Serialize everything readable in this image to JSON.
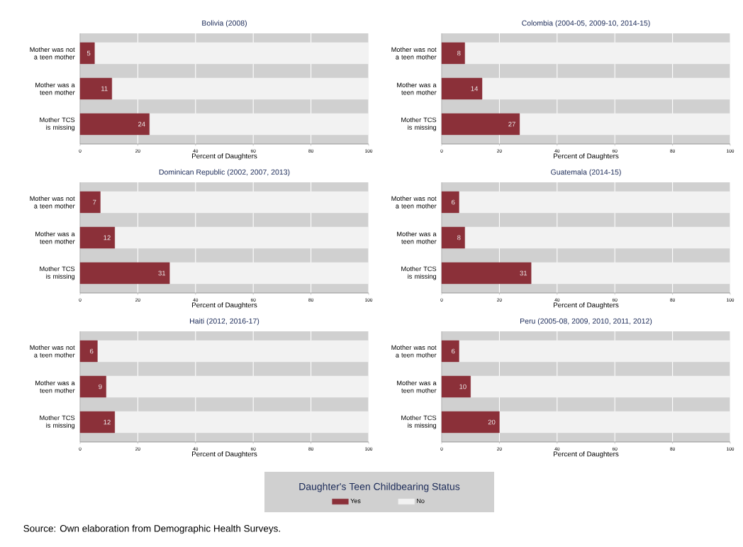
{
  "chart_data": [
    {
      "type": "bar",
      "orientation": "horizontal",
      "stacked": true,
      "title": "Bolivia (2008)",
      "xlabel": "Percent of Daughters",
      "categories": [
        "Mother was not a teen mother",
        "Mother was a teen mother",
        "Mother TCS is missing"
      ],
      "series": [
        {
          "color": "#8b3039",
          "values": [
            5,
            11,
            24
          ],
          "value_labels": [
            "5",
            "11",
            "24"
          ]
        },
        {
          "color": "#f2f2f2",
          "values": [
            95,
            89,
            76
          ]
        }
      ],
      "xlim": [
        0,
        100
      ],
      "xticks": [
        0,
        20,
        40,
        60,
        80,
        100
      ],
      "grid": "x"
    },
    {
      "type": "bar",
      "orientation": "horizontal",
      "stacked": true,
      "title": "Colombia (2004-05, 2009-10, 2014-15)",
      "xlabel": "Percent of Daughters",
      "categories": [
        "Mother was not a teen mother",
        "Mother was a teen mother",
        "Mother TCS is missing"
      ],
      "series": [
        {
          "color": "#8b3039",
          "values": [
            8,
            14,
            27
          ],
          "value_labels": [
            "8",
            "14",
            "27"
          ]
        },
        {
          "color": "#f2f2f2",
          "values": [
            92,
            86,
            73
          ]
        }
      ],
      "xlim": [
        0,
        100
      ],
      "xticks": [
        0,
        20,
        40,
        60,
        80,
        100
      ],
      "grid": "x"
    },
    {
      "type": "bar",
      "orientation": "horizontal",
      "stacked": true,
      "title": "Dominican Republic (2002, 2007, 2013)",
      "xlabel": "Percent of Daughters",
      "categories": [
        "Mother was not a teen mother",
        "Mother was a teen mother",
        "Mother TCS is missing"
      ],
      "series": [
        {
          "color": "#8b3039",
          "values": [
            7,
            12,
            31
          ],
          "value_labels": [
            "7",
            "12",
            "31"
          ]
        },
        {
          "color": "#f2f2f2",
          "values": [
            93,
            88,
            69
          ]
        }
      ],
      "xlim": [
        0,
        100
      ],
      "xticks": [
        0,
        20,
        40,
        60,
        80,
        100
      ],
      "grid": "x"
    },
    {
      "type": "bar",
      "orientation": "horizontal",
      "stacked": true,
      "title": "Guatemala (2014-15)",
      "xlabel": "Percent of Daughters",
      "categories": [
        "Mother was not a teen mother",
        "Mother was a teen mother",
        "Mother TCS is missing"
      ],
      "series": [
        {
          "color": "#8b3039",
          "values": [
            6,
            8,
            31
          ],
          "value_labels": [
            "6",
            "8",
            "31"
          ]
        },
        {
          "color": "#f2f2f2",
          "values": [
            94,
            92,
            69
          ]
        }
      ],
      "xlim": [
        0,
        100
      ],
      "xticks": [
        0,
        20,
        40,
        60,
        80,
        100
      ],
      "grid": "x"
    },
    {
      "type": "bar",
      "orientation": "horizontal",
      "stacked": true,
      "title": "Haiti (2012, 2016-17)",
      "xlabel": "Percent of Daughters",
      "categories": [
        "Mother was not a teen mother",
        "Mother was a teen mother",
        "Mother TCS is missing"
      ],
      "series": [
        {
          "color": "#8b3039",
          "values": [
            6,
            9,
            12
          ],
          "value_labels": [
            "6",
            "9",
            "12"
          ]
        },
        {
          "color": "#f2f2f2",
          "values": [
            94,
            91,
            88
          ]
        }
      ],
      "xlim": [
        0,
        100
      ],
      "xticks": [
        0,
        20,
        40,
        60,
        80,
        100
      ],
      "grid": "x"
    },
    {
      "type": "bar",
      "orientation": "horizontal",
      "stacked": true,
      "title": "Peru (2005-08, 2009, 2010, 2011, 2012)",
      "xlabel": "Percent of Daughters",
      "categories": [
        "Mother was not a teen mother",
        "Mother was a teen mother",
        "Mother TCS is missing"
      ],
      "series": [
        {
          "name": "Yes",
          "color": "#8b3039",
          "values": [
            6,
            10,
            20
          ],
          "value_labels": [
            "6",
            "10",
            "20"
          ]
        },
        {
          "name": "No",
          "color": "#f2f2f2",
          "values": [
            94,
            90,
            80
          ]
        }
      ],
      "xlim": [
        0,
        100
      ],
      "xticks": [
        0,
        20,
        40,
        60,
        80,
        100
      ],
      "grid": "x",
      "legend": "bottom",
      "legend_title": "Daughter's Teen Childbearing Status",
      "annotations": [
        "Source: Own elaboration from Demographic Health Surveys."
      ]
    }
  ]
}
